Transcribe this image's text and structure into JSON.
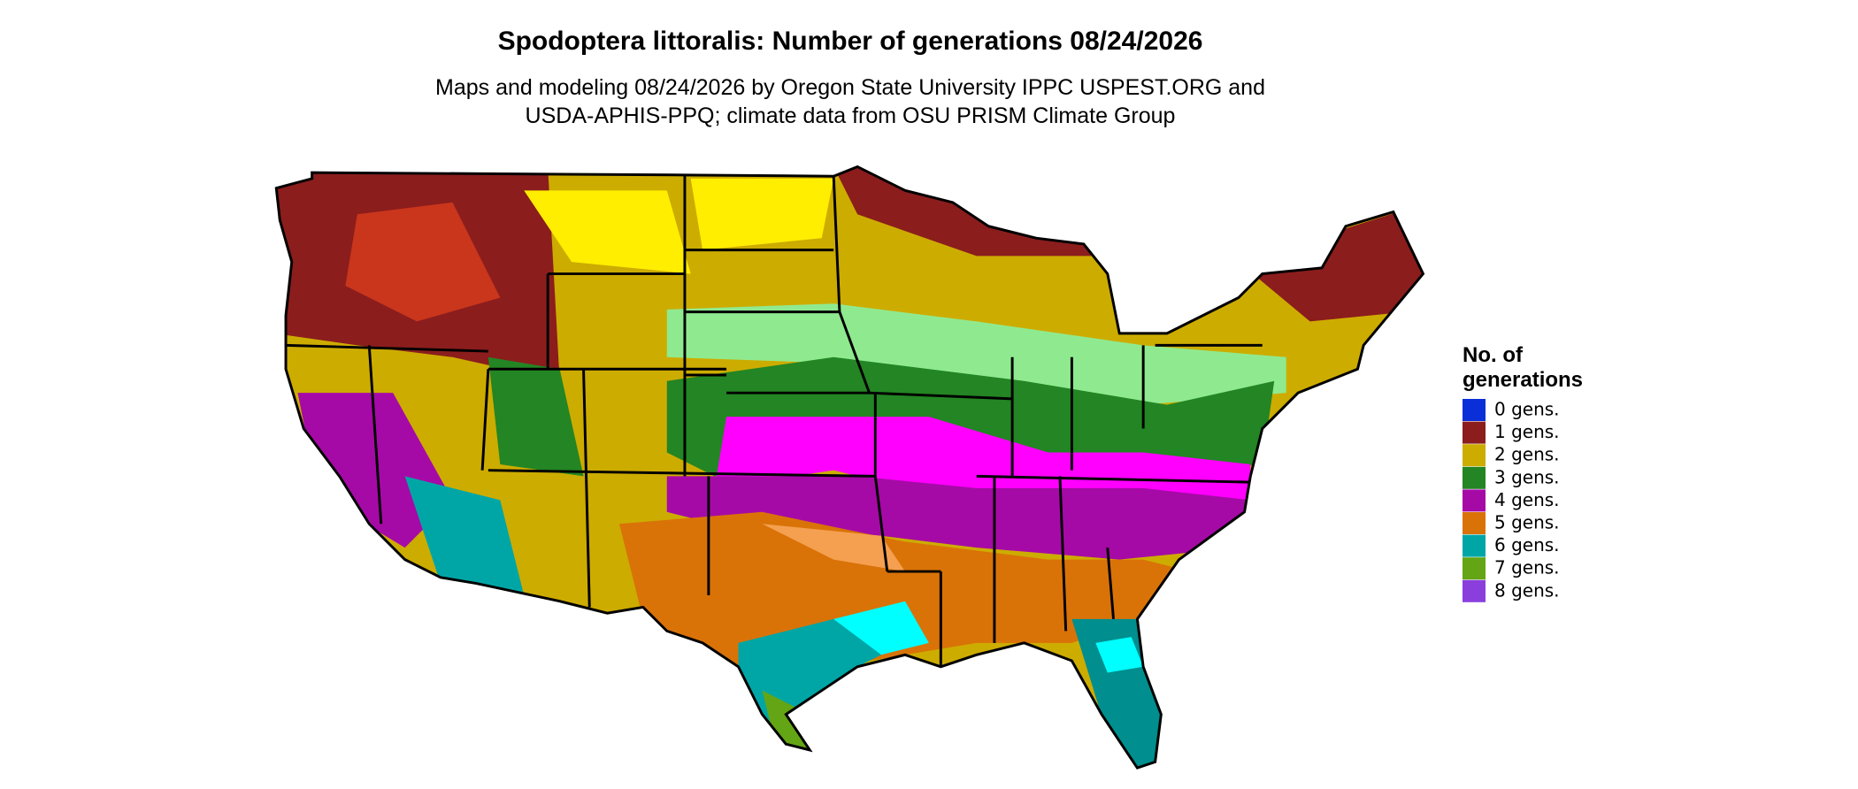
{
  "title": "Spodoptera littoralis: Number of generations 08/24/2026",
  "subtitle_lines": [
    "Maps and modeling 08/24/2026 by Oregon State University IPPC USPEST.ORG and",
    "USDA-APHIS-PPQ; climate data from OSU PRISM Climate Group"
  ],
  "legend": {
    "title_lines": [
      "No. of",
      "generations"
    ],
    "items": [
      {
        "label": "0 gens.",
        "color": "#0a2fd8"
      },
      {
        "label": "1 gens.",
        "color": "#8b1d1d"
      },
      {
        "label": "2 gens.",
        "color": "#cdac00"
      },
      {
        "label": "3 gens.",
        "color": "#238523"
      },
      {
        "label": "4 gens.",
        "color": "#a60aa6"
      },
      {
        "label": "5 gens.",
        "color": "#d97308"
      },
      {
        "label": "6 gens.",
        "color": "#00a6a6"
      },
      {
        "label": "7 gens.",
        "color": "#63a514"
      },
      {
        "label": "8 gens.",
        "color": "#8a3fdc"
      }
    ]
  }
}
